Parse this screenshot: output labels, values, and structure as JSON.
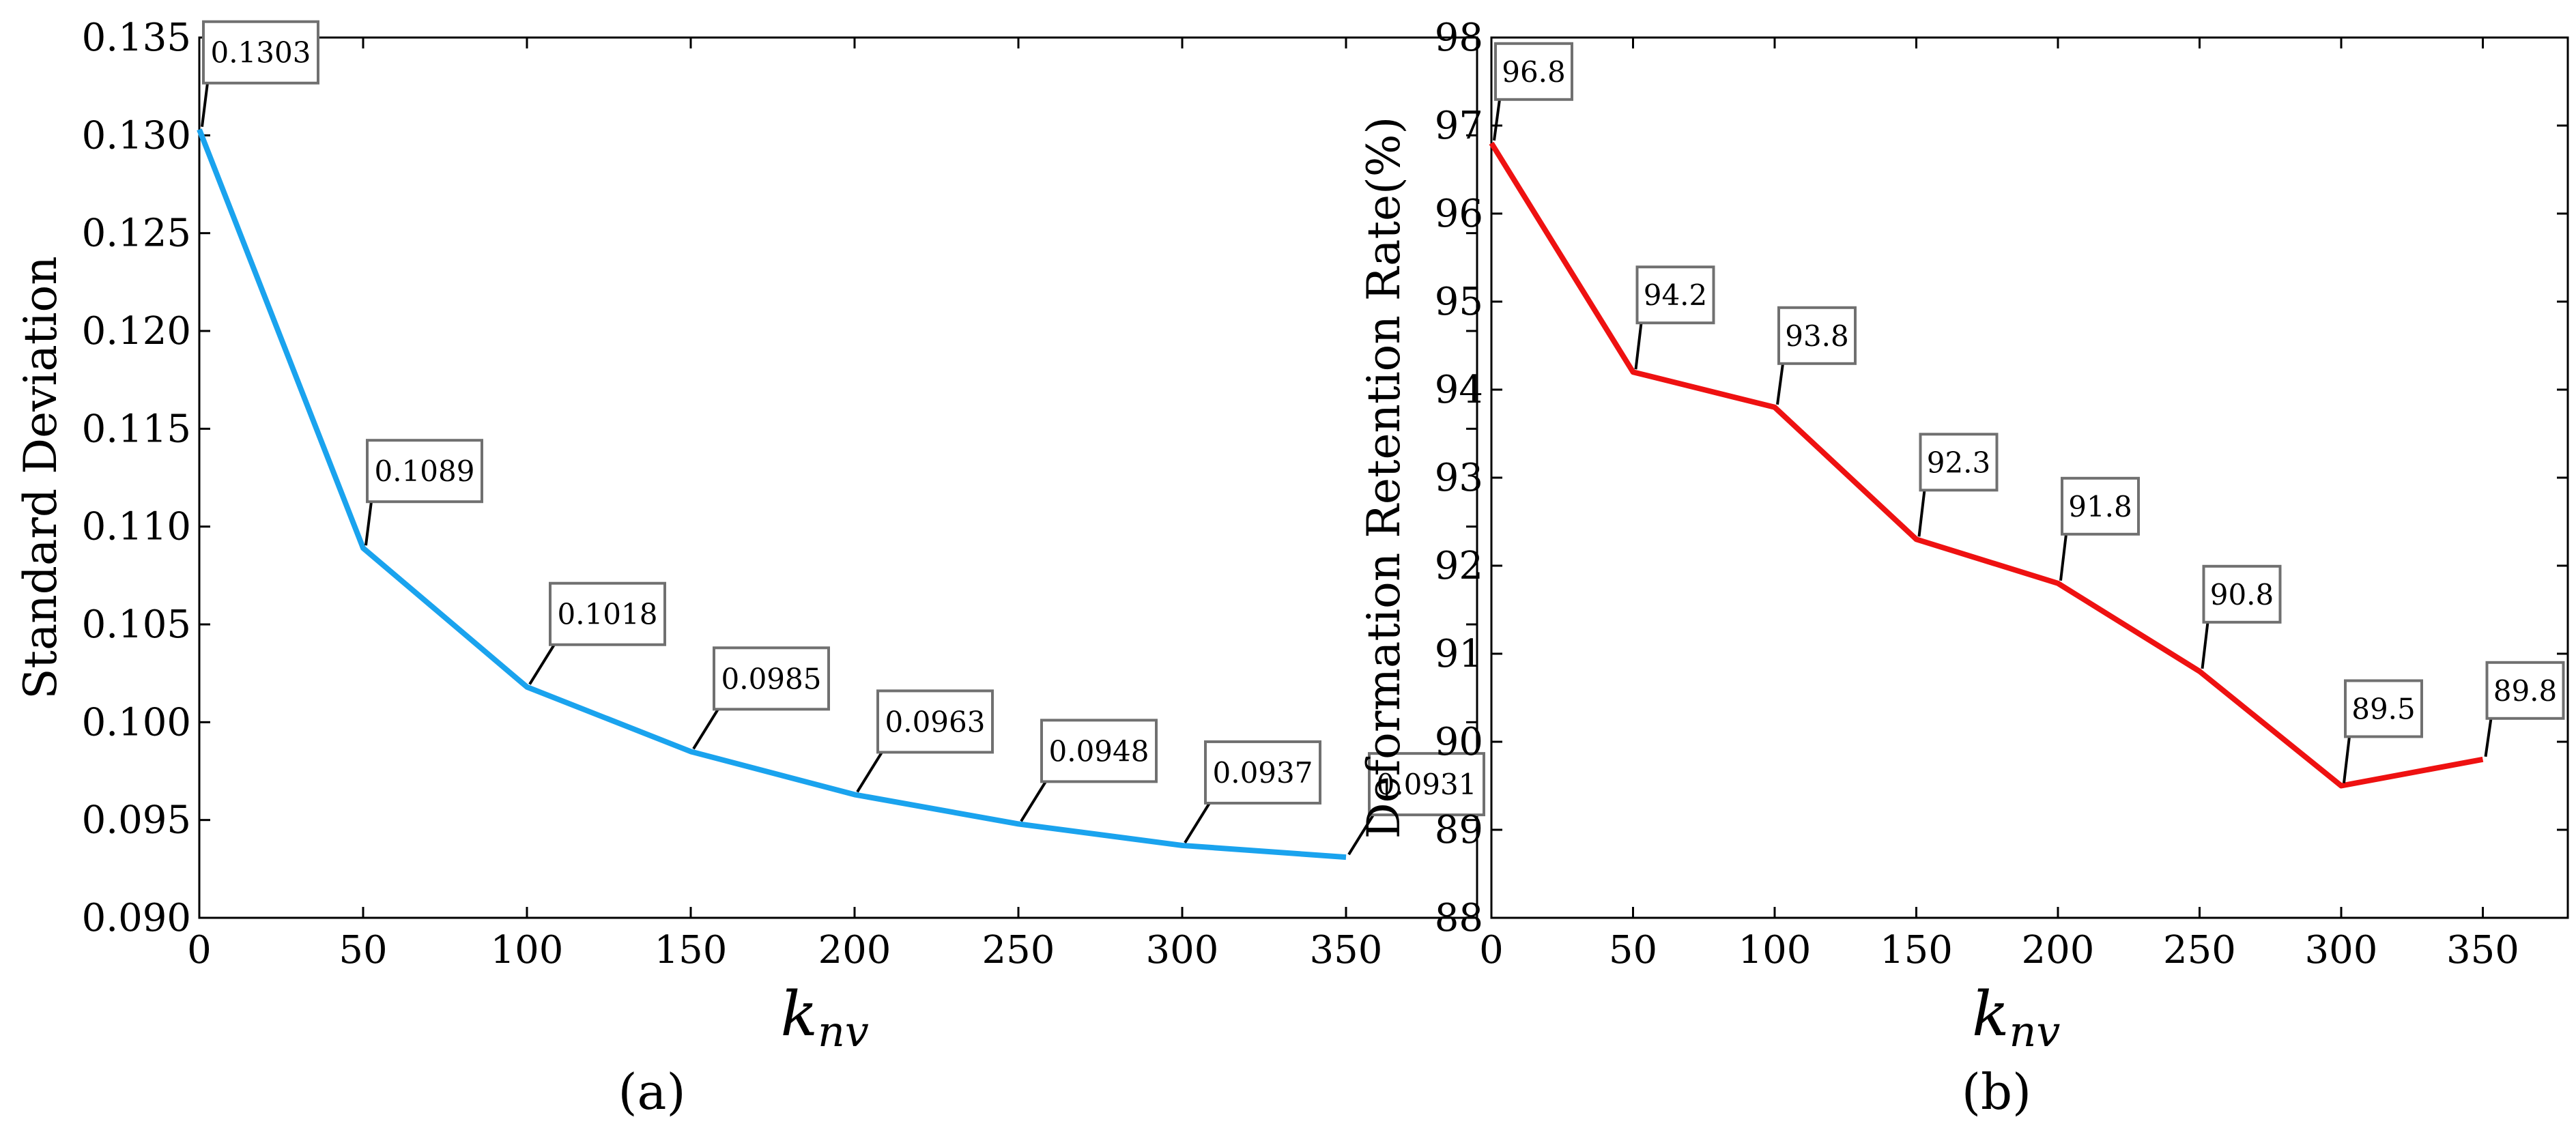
{
  "chart_data": [
    {
      "type": "line",
      "caption": "(a)",
      "xlabel": "k",
      "xlabel_sub": "nv",
      "ylabel": "Standard Deviation",
      "xlim": [
        0,
        390
      ],
      "ylim": [
        0.09,
        0.135
      ],
      "xticks": [
        0,
        50,
        100,
        150,
        200,
        250,
        300,
        350
      ],
      "yticks": [
        0.09,
        0.095,
        0.1,
        0.105,
        0.11,
        0.115,
        0.12,
        0.125,
        0.13,
        0.135
      ],
      "ytick_labels": [
        "0.090",
        "0.095",
        "0.100",
        "0.105",
        "0.110",
        "0.115",
        "0.120",
        "0.125",
        "0.130",
        "0.135"
      ],
      "grid": false,
      "color": "#1aa3ee",
      "x": [
        0,
        50,
        100,
        150,
        200,
        250,
        300,
        350
      ],
      "y": [
        0.1303,
        0.1089,
        0.1018,
        0.0985,
        0.0963,
        0.0948,
        0.0937,
        0.0931
      ],
      "annotations": [
        "0.1303",
        "0.1089",
        "0.1018",
        "0.0985",
        "0.0963",
        "0.0948",
        "0.0937",
        "0.0931"
      ]
    },
    {
      "type": "line",
      "caption": "(b)",
      "xlabel": "k",
      "xlabel_sub": "nv",
      "ylabel": "Deformation Retention Rate(%)",
      "xlim": [
        0,
        380
      ],
      "ylim": [
        88,
        98
      ],
      "xticks": [
        0,
        50,
        100,
        150,
        200,
        250,
        300,
        350
      ],
      "yticks": [
        88,
        89,
        90,
        91,
        92,
        93,
        94,
        95,
        96,
        97,
        98
      ],
      "ytick_labels": [
        "88",
        "89",
        "90",
        "91",
        "92",
        "93",
        "94",
        "95",
        "96",
        "97",
        "98"
      ],
      "grid": false,
      "color": "#ee1111",
      "x": [
        0,
        50,
        100,
        150,
        200,
        250,
        300,
        350
      ],
      "y": [
        96.8,
        94.2,
        93.8,
        92.3,
        91.8,
        90.8,
        89.5,
        89.8
      ],
      "annotations": [
        "96.8",
        "94.2",
        "93.8",
        "92.3",
        "91.8",
        "90.8",
        "89.5",
        "89.8"
      ]
    }
  ]
}
